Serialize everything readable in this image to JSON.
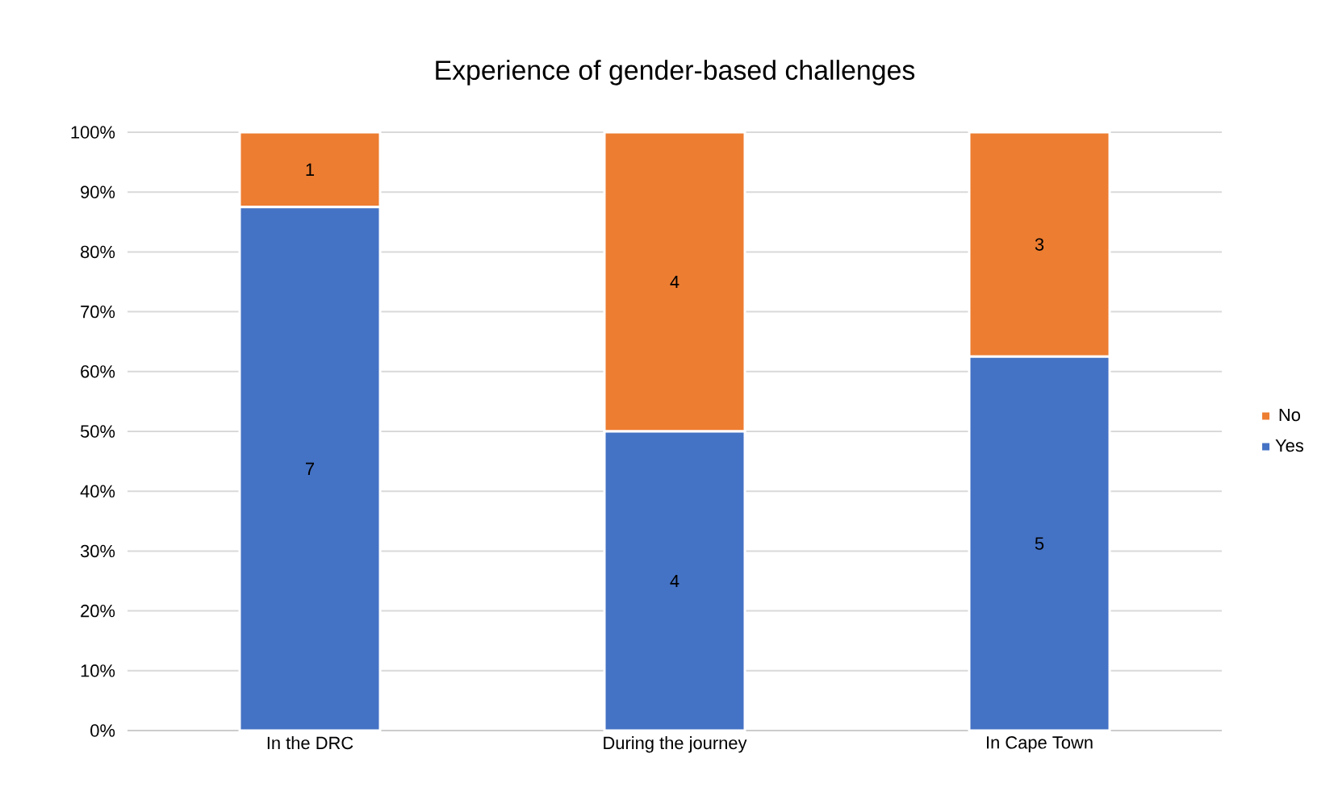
{
  "chart_data": {
    "type": "bar",
    "title": "Experience of gender-based challenges",
    "categories": [
      "In the DRC",
      "During the journey",
      "In Cape Town"
    ],
    "stacked": true,
    "series": [
      {
        "name": "Yes",
        "color": "#4472c4",
        "values": [
          87.5,
          50,
          62.5
        ]
      },
      {
        "name": "No",
        "color": "#ed7d31",
        "values": [
          12.5,
          50,
          37.5
        ]
      }
    ],
    "annotations": [
      "7",
      "4",
      "5",
      "1",
      "4",
      "3"
    ],
    "ylim": [
      0,
      100
    ],
    "yticks": [
      {
        "value": 0,
        "label": "0%"
      },
      {
        "value": 10,
        "label": "10%"
      },
      {
        "value": 20,
        "label": "20%"
      },
      {
        "value": 30,
        "label": "30%"
      },
      {
        "value": 40,
        "label": "40%"
      },
      {
        "value": 50,
        "label": "50%"
      },
      {
        "value": 60,
        "label": "60%"
      },
      {
        "value": 70,
        "label": "70%"
      },
      {
        "value": 80,
        "label": "80%"
      },
      {
        "value": 90,
        "label": "90%"
      },
      {
        "value": 100,
        "label": "100%"
      }
    ],
    "grid": "y",
    "legend": "right"
  }
}
